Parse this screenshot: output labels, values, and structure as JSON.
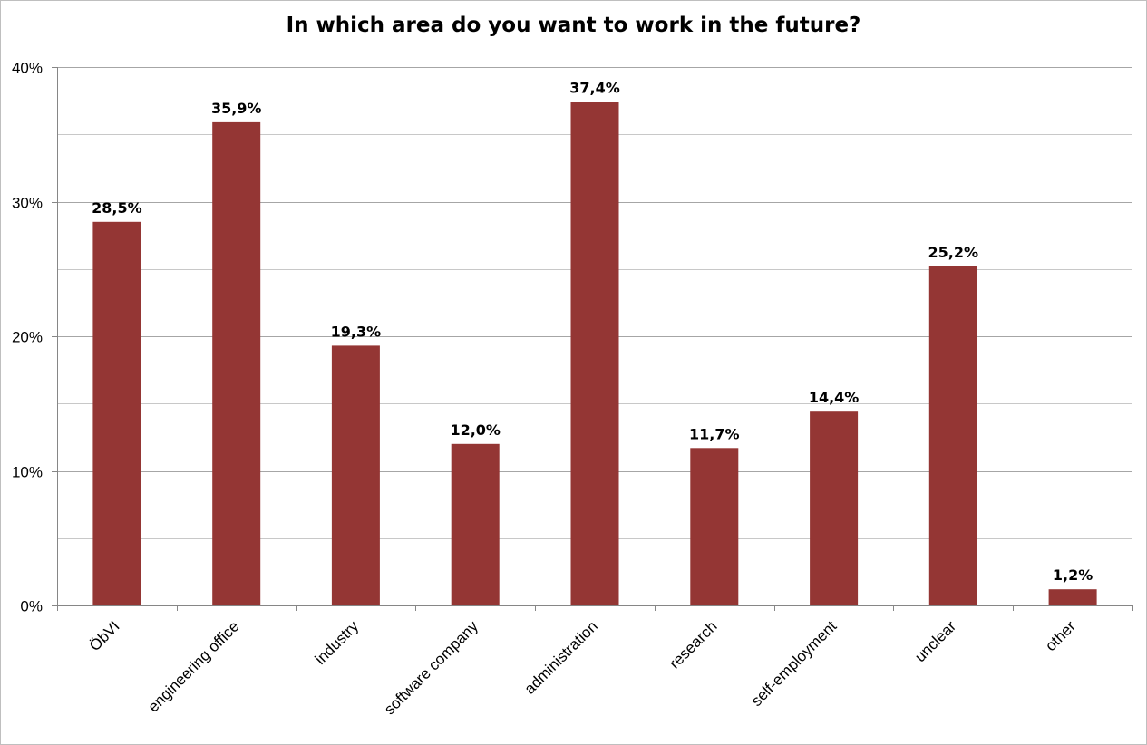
{
  "chart_data": {
    "type": "bar",
    "title": "In which area do you want to work in the future?",
    "xlabel": "",
    "ylabel": "",
    "categories": [
      "ÖbVI",
      "engineering office",
      "industry",
      "software company",
      "administration",
      "research",
      "self-employment",
      "unclear",
      "other"
    ],
    "values": [
      28.5,
      35.9,
      19.3,
      12.0,
      37.4,
      11.7,
      14.4,
      25.2,
      1.2
    ],
    "data_labels": [
      "28,5%",
      "35,9%",
      "19,3%",
      "12,0%",
      "37,4%",
      "11,7%",
      "14,4%",
      "25,2%",
      "1,2%"
    ],
    "ylim": [
      0,
      40
    ],
    "yticks": [
      0,
      10,
      20,
      30,
      40
    ],
    "ytick_labels": [
      "0%",
      "10%",
      "20%",
      "30%",
      "40%"
    ],
    "minor_gridlines": [
      5,
      15,
      25,
      35
    ],
    "grid": true,
    "legend": "none",
    "bar_color": "#943634",
    "grid_color": "#a6a6a6"
  }
}
